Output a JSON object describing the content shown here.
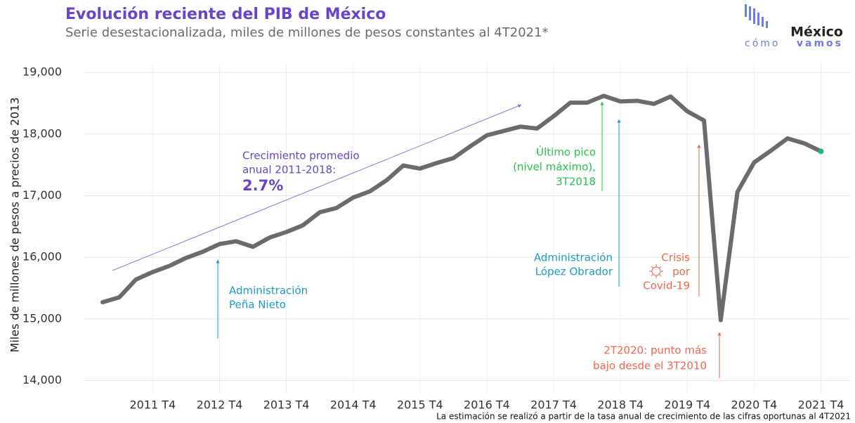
{
  "chart_data": {
    "type": "line",
    "title": "Evolución reciente del PIB de México",
    "subtitle": "Serie desestacionalizada, miles de millones de pesos constantes al 4T2021*",
    "y_label": "Miles de millones de pesos a precios de 2013",
    "footnote": "La estimación se realizó a partir de la tasa anual de crecimiento de las cifras oportunas al 4T2021",
    "logo": {
      "name": "México",
      "sub1": "cómo",
      "sub2": "vamos"
    },
    "categories": [
      null,
      null,
      null,
      "2011 T4",
      null,
      null,
      null,
      "2012 T4",
      null,
      null,
      null,
      "2013 T4",
      null,
      null,
      null,
      "2014 T4",
      null,
      null,
      null,
      "2015 T4",
      null,
      null,
      null,
      "2016 T4",
      null,
      null,
      null,
      "2017 T4",
      null,
      null,
      null,
      "2018 T4",
      null,
      null,
      null,
      "2019 T4",
      null,
      null,
      null,
      "2020 T4",
      null,
      null,
      null,
      "2021 T4"
    ],
    "series": [
      {
        "name": "PIB",
        "color": "#6b6b6b",
        "values": [
          15270,
          15350,
          15640,
          15760,
          15860,
          15990,
          16090,
          16215,
          16260,
          16170,
          16320,
          16410,
          16520,
          16730,
          16800,
          16970,
          17070,
          17250,
          17490,
          17440,
          17530,
          17610,
          17800,
          17980,
          18050,
          18120,
          18090,
          18290,
          18510,
          18510,
          18620,
          18530,
          18540,
          18490,
          18610,
          18370,
          18220,
          14980,
          17060,
          17540,
          17730,
          17930,
          17850,
          17720
        ]
      }
    ],
    "end_marker_color": "#1db584",
    "ylim": [
      13800,
      19150
    ],
    "yticks": [
      {
        "value": 14000,
        "label": "14,000"
      },
      {
        "value": 15000,
        "label": "15,000"
      },
      {
        "value": 16000,
        "label": "16,000"
      },
      {
        "value": 17000,
        "label": "17,000"
      },
      {
        "value": 18000,
        "label": "18,000"
      },
      {
        "value": 19000,
        "label": "19,000"
      }
    ],
    "grid": true,
    "annotations": [
      {
        "lines": [
          "Crecimiento promedio",
          "anual 2011-2018:"
        ],
        "color": "#6a44c8"
      },
      {
        "lines": [
          "2.7%"
        ],
        "color": "#6a44c8"
      },
      {
        "lines": [
          "Administración",
          "Peña Nieto"
        ],
        "color": "#1b9cc4"
      },
      {
        "lines": [
          "Último pico",
          "(nivel máximo),",
          "3T2018"
        ],
        "color": "#25c24e"
      },
      {
        "lines": [
          "Administración",
          "López Obrador"
        ],
        "color": "#1b9cc4"
      },
      {
        "lines": [
          "Crisis",
          "por",
          "Covid-19"
        ],
        "color": "#f0654a"
      },
      {
        "lines": [
          "2T2020: punto más",
          "bajo desde el 3T2010"
        ],
        "color": "#f0654a"
      }
    ]
  }
}
